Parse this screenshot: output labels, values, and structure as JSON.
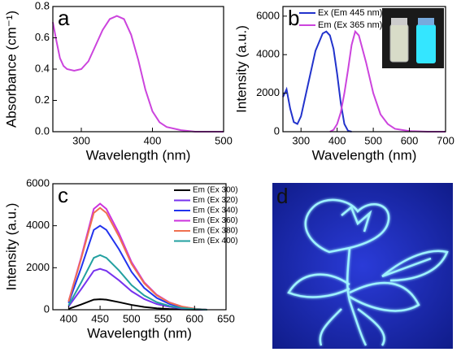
{
  "chart_data": [
    {
      "type": "line",
      "panel_label": "a",
      "x_label": "Wavelength (nm)",
      "y_label": "Absorbance (cm⁻¹)",
      "x": [
        260,
        265,
        270,
        275,
        280,
        290,
        300,
        310,
        320,
        330,
        340,
        350,
        360,
        370,
        380,
        390,
        400,
        410,
        420,
        440,
        460,
        500
      ],
      "values": [
        0.7,
        0.58,
        0.47,
        0.42,
        0.4,
        0.39,
        0.4,
        0.45,
        0.55,
        0.65,
        0.72,
        0.74,
        0.72,
        0.62,
        0.46,
        0.27,
        0.13,
        0.06,
        0.03,
        0.01,
        0.0,
        0.0
      ],
      "color": "#cc44dd",
      "xlim": [
        260,
        500
      ],
      "xticks": [
        300,
        400,
        500
      ],
      "ylim": [
        0,
        0.8
      ],
      "yticks": [
        {
          "value": 0,
          "label": "0.0"
        },
        0.2,
        0.4,
        0.6,
        0.8
      ]
    },
    {
      "type": "line",
      "panel_label": "b",
      "x_label": "Wavelength (nm)",
      "y_label": "Intensity (a.u.)",
      "legend": "upper left",
      "x": [
        250,
        260,
        270,
        280,
        290,
        300,
        320,
        340,
        360,
        370,
        380,
        390,
        400,
        410,
        420,
        430,
        440,
        450,
        460,
        480,
        500,
        520,
        540,
        560,
        600,
        650,
        700
      ],
      "series": [
        {
          "name": "Ex (Em 445 nm)",
          "color": "#2233cc",
          "values": [
            1800,
            2200,
            1200,
            500,
            400,
            800,
            2500,
            4200,
            5100,
            5200,
            5000,
            4300,
            3000,
            1500,
            400,
            50,
            0,
            null,
            null,
            null,
            null,
            null,
            null,
            null,
            null,
            null,
            null
          ]
        },
        {
          "name": "Em (Ex 365 nm)",
          "color": "#cc44dd",
          "values": [
            null,
            null,
            null,
            null,
            null,
            null,
            null,
            null,
            null,
            null,
            0,
            100,
            400,
            1000,
            2000,
            3200,
            4500,
            5200,
            5000,
            3600,
            2000,
            900,
            400,
            150,
            30,
            0,
            0
          ]
        }
      ],
      "xlim": [
        250,
        700
      ],
      "xticks": [
        300,
        400,
        500,
        600,
        700
      ],
      "ylim": [
        0,
        6500
      ],
      "yticks": [
        0,
        2000,
        4000,
        6000
      ]
    },
    {
      "type": "line",
      "panel_label": "c",
      "x_label": "Wavelength (nm)",
      "y_label": "Intensity (a.u.)",
      "legend": "upper right",
      "x": [
        400,
        420,
        440,
        450,
        460,
        480,
        500,
        520,
        540,
        560,
        580,
        600,
        620
      ],
      "series": [
        {
          "name": "Em (Ex 300)",
          "color": "#000000",
          "values": [
            40,
            250,
            480,
            500,
            480,
            360,
            230,
            130,
            70,
            35,
            15,
            5,
            0
          ]
        },
        {
          "name": "Em (Ex 320)",
          "color": "#7733ee",
          "values": [
            160,
            980,
            1850,
            1950,
            1850,
            1400,
            880,
            510,
            270,
            140,
            60,
            20,
            0
          ]
        },
        {
          "name": "Em (Ex 340)",
          "color": "#2233ee",
          "values": [
            320,
            2000,
            3800,
            4000,
            3800,
            2880,
            1800,
            1040,
            560,
            280,
            120,
            40,
            0
          ]
        },
        {
          "name": "Em (Ex 360)",
          "color": "#cc33dd",
          "values": [
            400,
            2500,
            4800,
            5050,
            4800,
            3640,
            2270,
            1310,
            710,
            350,
            150,
            50,
            0
          ]
        },
        {
          "name": "Em (Ex 380)",
          "color": "#f07050",
          "values": [
            390,
            2430,
            4610,
            4850,
            4610,
            3490,
            2180,
            1260,
            680,
            340,
            150,
            50,
            0
          ]
        },
        {
          "name": "Em (Ex 400)",
          "color": "#22a0a0",
          "values": [
            210,
            1300,
            2470,
            2600,
            2470,
            1870,
            1170,
            680,
            360,
            180,
            80,
            30,
            0
          ]
        }
      ],
      "xlim": [
        375,
        650
      ],
      "xticks": [
        400,
        450,
        500,
        550,
        600,
        650
      ],
      "ylim": [
        0,
        6000
      ],
      "yticks": [
        0,
        2000,
        4000,
        6000
      ]
    }
  ],
  "panel_d": {
    "label": "d"
  }
}
